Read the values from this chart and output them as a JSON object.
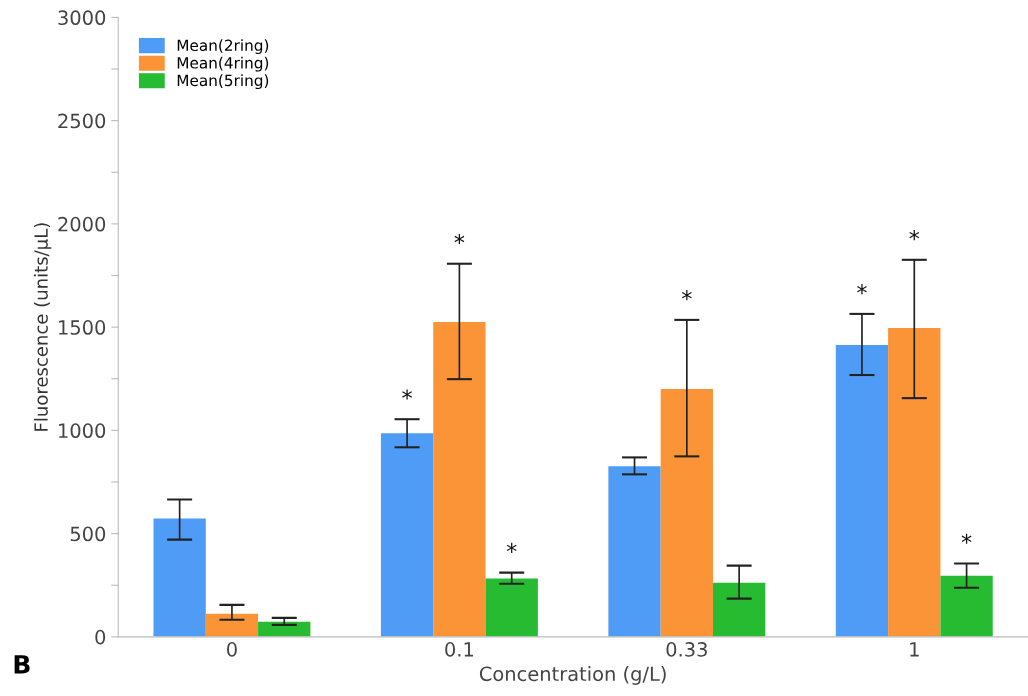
{
  "chart_data": {
    "type": "bar",
    "xlabel": "Concentration (g/L)",
    "ylabel": "Fluorescence (units/µL)",
    "categories": [
      "0",
      "0.1",
      "0.33",
      "1"
    ],
    "series": [
      {
        "name": "Mean(2ring)",
        "color": "#4f9cf7",
        "values": [
          573,
          986,
          826,
          1413
        ],
        "value_labels": [
          null,
          "*",
          null,
          "*"
        ],
        "errors": [
          [
            471,
            665
          ],
          [
            918,
            1054
          ],
          [
            787,
            869
          ],
          [
            1268,
            1564
          ]
        ]
      },
      {
        "name": "Mean(4ring)",
        "color": "#fa9437",
        "values": [
          112,
          1525,
          1200,
          1496
        ],
        "errors": [
          [
            83,
            155
          ],
          [
            1248,
            1807
          ],
          [
            874,
            1535
          ],
          [
            1156,
            1826
          ]
        ]
      },
      {
        "name": "Mean(5ring)",
        "color": "#27bb32",
        "values": [
          73,
          282,
          262,
          296
        ],
        "value_labels": [
          null,
          "*",
          null,
          "*"
        ],
        "errors": [
          [
            58,
            92
          ],
          [
            257,
            311
          ],
          [
            185,
            345
          ],
          [
            238,
            355
          ]
        ]
      }
    ],
    "ylim": [
      0,
      3000
    ],
    "yticks": [
      0,
      {
        "value": 250,
        "label": null
      },
      500,
      {
        "value": 750,
        "label": null
      },
      1000,
      {
        "value": 1250,
        "label": null
      },
      1500,
      {
        "value": 1750,
        "label": null
      },
      2000,
      {
        "value": 2250,
        "label": null
      },
      2500,
      {
        "value": 2750,
        "label": null
      },
      3000
    ],
    "grid": false,
    "legend": "top left",
    "annotations": [
      {
        "text": "*",
        "x": "0.1",
        "y": 1807
      },
      {
        "text": "*",
        "x": "0.33",
        "y": 1535
      },
      {
        "text": "*",
        "x": "1",
        "y": 1826
      },
      "B"
    ]
  }
}
